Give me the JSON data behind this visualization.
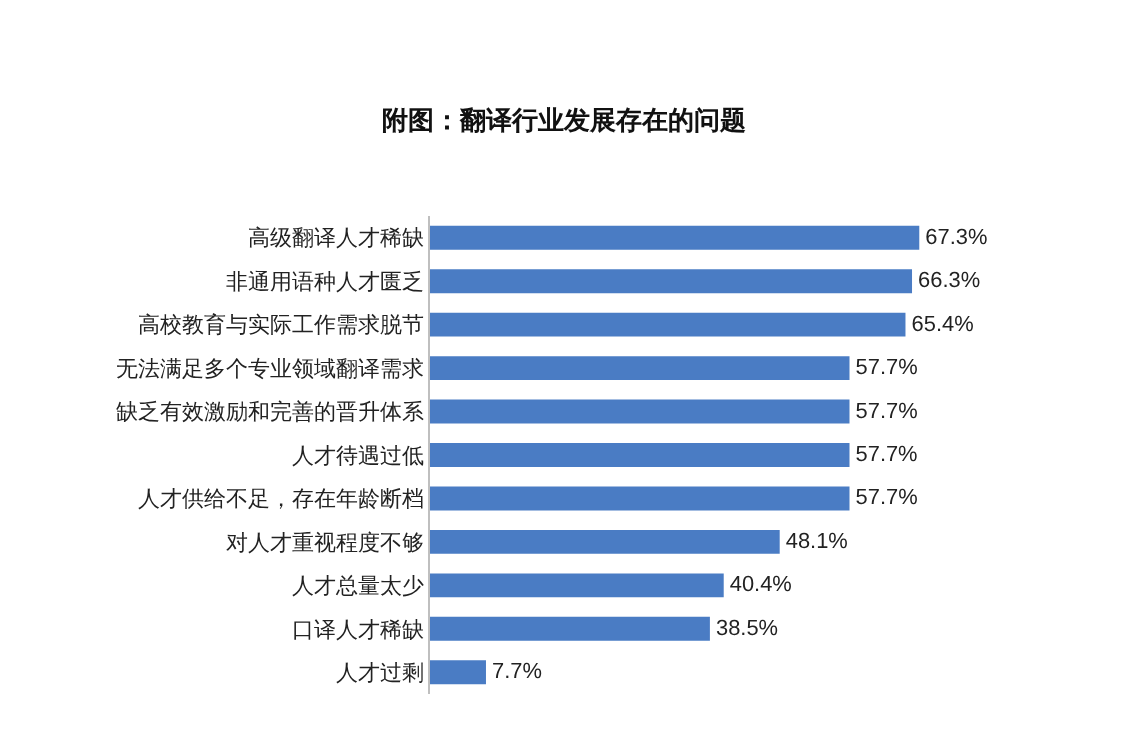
{
  "chart_data": {
    "type": "bar",
    "orientation": "horizontal",
    "title": "附图：翻译行业发展存在的问题",
    "categories": [
      "高级翻译人才稀缺",
      "非通用语种人才匮乏",
      "高校教育与实际工作需求脱节",
      "无法满足多个专业领域翻译需求",
      "缺乏有效激励和完善的晋升体系",
      "人才待遇过低",
      "人才供给不足，存在年龄断档",
      "对人才重视程度不够",
      "人才总量太少",
      "口译人才稀缺",
      "人才过剩"
    ],
    "values": [
      67.3,
      66.3,
      65.4,
      57.7,
      57.7,
      57.7,
      57.7,
      48.1,
      40.4,
      38.5,
      7.7
    ],
    "value_labels": [
      "67.3%",
      "66.3%",
      "65.4%",
      "57.7%",
      "57.7%",
      "57.7%",
      "57.7%",
      "48.1%",
      "40.4%",
      "38.5%",
      "7.7%"
    ],
    "color": "#4a7cc4",
    "grid": false,
    "legend": false
  }
}
